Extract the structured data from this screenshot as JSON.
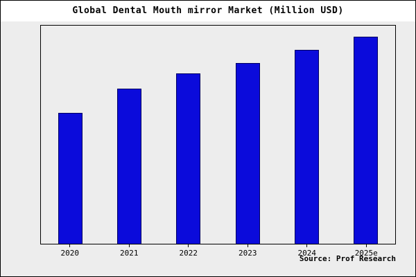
{
  "title": "Global Dental Mouth mirror Market (Million USD)",
  "source": "Source: Prof Research",
  "colors": {
    "bar_fill": "#0b0bdb",
    "bar_edge": "#000060",
    "panel_bg": "#ededed",
    "figure_bg": "#ffffff",
    "axis": "#000000"
  },
  "chart_data": {
    "type": "bar",
    "categories": [
      "2020",
      "2021",
      "2022",
      "2023",
      "2024",
      "2025e"
    ],
    "values": [
      60,
      71,
      78,
      83,
      89,
      95
    ],
    "title": "Global Dental Mouth mirror Market (Million USD)",
    "xlabel": "",
    "ylabel": "",
    "ylim": [
      0,
      100
    ],
    "y_axis_labels_visible": false,
    "grid": false,
    "legend_position": "none",
    "annotation": "Source: Prof Research"
  }
}
